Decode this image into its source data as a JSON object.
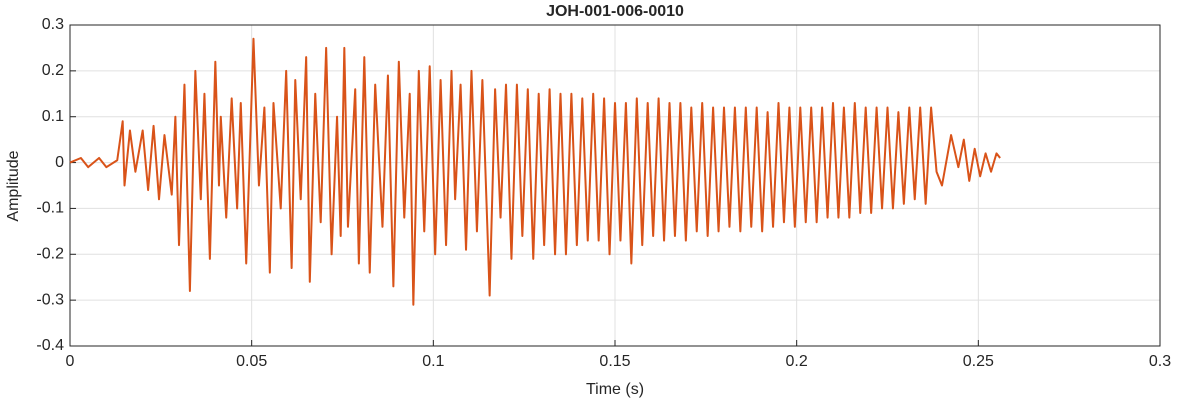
{
  "chart_data": {
    "type": "line",
    "title": "JOH-001-006-0010",
    "x_label": "Time (s)",
    "y_label": "Amplitude",
    "color": "#d95319",
    "grid": true,
    "xlim": [
      0,
      0.3
    ],
    "xticks": [
      0,
      0.05,
      0.1,
      0.15,
      0.2,
      0.25,
      0.3
    ],
    "ylim": [
      -0.4,
      0.3
    ],
    "yticks": [
      -0.4,
      -0.3,
      -0.2,
      -0.1,
      0,
      0.1,
      0.2,
      0.3
    ],
    "x": [
      0,
      0.003,
      0.005,
      0.008,
      0.01,
      0.013,
      0.0145,
      0.015,
      0.0165,
      0.018,
      0.02,
      0.0215,
      0.023,
      0.0245,
      0.026,
      0.028,
      0.029,
      0.03,
      0.0315,
      0.033,
      0.0345,
      0.036,
      0.037,
      0.0385,
      0.04,
      0.041,
      0.0415,
      0.043,
      0.0445,
      0.046,
      0.047,
      0.0485,
      0.0505,
      0.052,
      0.0535,
      0.055,
      0.056,
      0.058,
      0.0595,
      0.061,
      0.062,
      0.0635,
      0.065,
      0.066,
      0.0675,
      0.069,
      0.0705,
      0.072,
      0.0735,
      0.0745,
      0.0755,
      0.0765,
      0.0785,
      0.0795,
      0.081,
      0.0825,
      0.084,
      0.086,
      0.0875,
      0.089,
      0.0905,
      0.092,
      0.0935,
      0.0945,
      0.096,
      0.0975,
      0.099,
      0.1005,
      0.102,
      0.1035,
      0.105,
      0.106,
      0.1075,
      0.109,
      0.1105,
      0.112,
      0.1135,
      0.1155,
      0.117,
      0.1185,
      0.12,
      0.1215,
      0.123,
      0.1245,
      0.126,
      0.1275,
      0.129,
      0.1305,
      0.132,
      0.1335,
      0.135,
      0.1365,
      0.138,
      0.1395,
      0.141,
      0.1425,
      0.144,
      0.1455,
      0.147,
      0.1485,
      0.15,
      0.1515,
      0.153,
      0.1545,
      0.156,
      0.1575,
      0.159,
      0.1605,
      0.162,
      0.1635,
      0.165,
      0.1665,
      0.168,
      0.1695,
      0.171,
      0.1725,
      0.174,
      0.1755,
      0.177,
      0.1785,
      0.18,
      0.1815,
      0.183,
      0.1845,
      0.186,
      0.1875,
      0.189,
      0.1905,
      0.192,
      0.1935,
      0.195,
      0.1965,
      0.198,
      0.1995,
      0.201,
      0.2025,
      0.204,
      0.2055,
      0.207,
      0.2085,
      0.21,
      0.2115,
      0.213,
      0.2145,
      0.216,
      0.2175,
      0.219,
      0.2205,
      0.222,
      0.2235,
      0.225,
      0.2265,
      0.228,
      0.2295,
      0.231,
      0.2325,
      0.234,
      0.2355,
      0.237,
      0.2385,
      0.24,
      0.2425,
      0.2445,
      0.246,
      0.2475,
      0.249,
      0.2505,
      0.252,
      0.2535,
      0.255,
      0.256
    ],
    "values": [
      0,
      0.01,
      -0.01,
      0.01,
      -0.01,
      0.005,
      0.09,
      -0.05,
      0.07,
      -0.02,
      0.07,
      -0.06,
      0.08,
      -0.08,
      0.06,
      -0.07,
      0.1,
      -0.18,
      0.17,
      -0.28,
      0.2,
      -0.08,
      0.15,
      -0.21,
      0.22,
      -0.05,
      0.1,
      -0.12,
      0.14,
      -0.1,
      0.13,
      -0.22,
      0.27,
      -0.05,
      0.12,
      -0.24,
      0.13,
      -0.1,
      0.2,
      -0.23,
      0.18,
      -0.08,
      0.23,
      -0.26,
      0.15,
      -0.13,
      0.25,
      -0.2,
      0.1,
      -0.16,
      0.25,
      -0.14,
      0.16,
      -0.22,
      0.23,
      -0.24,
      0.17,
      -0.14,
      0.19,
      -0.27,
      0.22,
      -0.12,
      0.15,
      -0.31,
      0.2,
      -0.15,
      0.21,
      -0.2,
      0.18,
      -0.18,
      0.2,
      -0.08,
      0.17,
      -0.19,
      0.2,
      -0.15,
      0.18,
      -0.29,
      0.16,
      -0.12,
      0.17,
      -0.21,
      0.17,
      -0.16,
      0.16,
      -0.21,
      0.15,
      -0.18,
      0.16,
      -0.2,
      0.15,
      -0.2,
      0.15,
      -0.18,
      0.14,
      -0.17,
      0.15,
      -0.17,
      0.14,
      -0.2,
      0.13,
      -0.17,
      0.13,
      -0.22,
      0.14,
      -0.18,
      0.13,
      -0.16,
      0.14,
      -0.17,
      0.13,
      -0.16,
      0.13,
      -0.17,
      0.12,
      -0.15,
      0.13,
      -0.16,
      0.12,
      -0.15,
      0.12,
      -0.14,
      0.12,
      -0.15,
      0.12,
      -0.14,
      0.12,
      -0.15,
      0.11,
      -0.14,
      0.13,
      -0.13,
      0.12,
      -0.14,
      0.12,
      -0.13,
      0.12,
      -0.13,
      0.12,
      -0.12,
      0.13,
      -0.12,
      0.12,
      -0.12,
      0.13,
      -0.11,
      0.12,
      -0.11,
      0.12,
      -0.1,
      0.12,
      -0.1,
      0.11,
      -0.09,
      0.12,
      -0.08,
      0.12,
      -0.09,
      0.12,
      -0.02,
      -0.05,
      0.06,
      -0.01,
      0.05,
      -0.04,
      0.03,
      -0.03,
      0.02,
      -0.02,
      0.02,
      0.01
    ]
  }
}
